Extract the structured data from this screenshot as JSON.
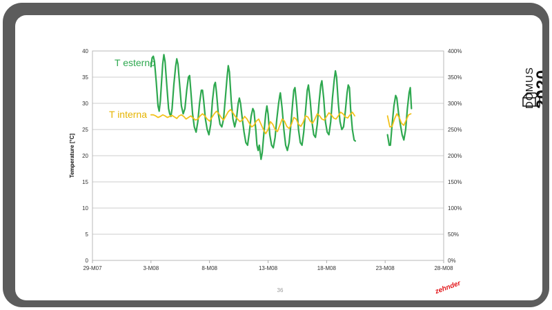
{
  "slide": {
    "page_number": "36",
    "brand": "zehnder",
    "logo": {
      "line1": "DOMUS",
      "line2": "2020",
      "icon": "house-outline-icon"
    }
  },
  "chart_data": {
    "type": "line",
    "title": "",
    "xlabel": "",
    "ylabel": "Temperature [°C]",
    "x_ticks": [
      "29-M07",
      "3-M08",
      "8-M08",
      "13-M08",
      "18-M08",
      "23-M08",
      "28-M08"
    ],
    "x_tick_values": [
      0,
      5,
      10,
      15,
      20,
      25,
      30
    ],
    "ylim": [
      0,
      40
    ],
    "y_ticks": [
      "0",
      "5",
      "10",
      "15",
      "20",
      "25",
      "30",
      "35",
      "40"
    ],
    "y2lim": [
      0,
      400
    ],
    "y2_ticks": [
      "0%",
      "50%",
      "100%",
      "150%",
      "200%",
      "250%",
      "300%",
      "350%",
      "400%"
    ],
    "grid": true,
    "series": [
      {
        "name": "T esterno",
        "color": "#2ea84f",
        "segments": [
          [
            [
              5.0,
              37.0
            ],
            [
              5.1,
              38.7
            ],
            [
              5.2,
              39.0
            ],
            [
              5.3,
              38.0
            ],
            [
              5.45,
              34.0
            ],
            [
              5.6,
              29.5
            ],
            [
              5.7,
              28.5
            ],
            [
              5.8,
              30.5
            ],
            [
              5.9,
              34.0
            ],
            [
              6.0,
              37.5
            ],
            [
              6.1,
              39.3
            ],
            [
              6.2,
              38.0
            ],
            [
              6.35,
              33.5
            ],
            [
              6.5,
              29.0
            ],
            [
              6.6,
              28.0
            ],
            [
              6.7,
              27.5
            ],
            [
              6.8,
              29.0
            ],
            [
              6.95,
              33.5
            ],
            [
              7.1,
              37.0
            ],
            [
              7.2,
              38.5
            ],
            [
              7.3,
              37.5
            ],
            [
              7.45,
              33.5
            ],
            [
              7.6,
              29.5
            ],
            [
              7.75,
              28.0
            ],
            [
              7.9,
              29.0
            ],
            [
              8.05,
              32.5
            ],
            [
              8.2,
              35.0
            ],
            [
              8.3,
              35.3
            ],
            [
              8.4,
              32.5
            ],
            [
              8.55,
              28.0
            ],
            [
              8.7,
              25.5
            ],
            [
              8.85,
              24.5
            ],
            [
              9.0,
              26.5
            ],
            [
              9.15,
              30.0
            ],
            [
              9.3,
              32.5
            ],
            [
              9.4,
              32.5
            ],
            [
              9.5,
              30.5
            ],
            [
              9.65,
              27.0
            ],
            [
              9.8,
              25.0
            ],
            [
              9.95,
              24.0
            ],
            [
              10.1,
              26.0
            ],
            [
              10.25,
              30.5
            ],
            [
              10.4,
              33.5
            ],
            [
              10.5,
              34.0
            ],
            [
              10.6,
              32.0
            ],
            [
              10.75,
              28.0
            ],
            [
              10.9,
              26.0
            ],
            [
              11.05,
              25.5
            ],
            [
              11.2,
              27.0
            ],
            [
              11.35,
              31.0
            ],
            [
              11.5,
              35.0
            ],
            [
              11.6,
              37.2
            ],
            [
              11.7,
              36.0
            ],
            [
              11.85,
              30.5
            ],
            [
              12.0,
              27.0
            ],
            [
              12.15,
              25.5
            ],
            [
              12.3,
              27.0
            ],
            [
              12.45,
              30.0
            ],
            [
              12.55,
              31.0
            ],
            [
              12.65,
              30.0
            ],
            [
              12.8,
              27.0
            ],
            [
              12.95,
              24.5
            ],
            [
              13.1,
              22.5
            ],
            [
              13.25,
              22.0
            ],
            [
              13.4,
              24.5
            ],
            [
              13.55,
              27.5
            ],
            [
              13.7,
              29.0
            ],
            [
              13.8,
              28.5
            ],
            [
              13.95,
              25.0
            ],
            [
              14.05,
              22.0
            ],
            [
              14.15,
              21.0
            ],
            [
              14.25,
              22.0
            ],
            [
              14.4,
              19.3
            ],
            [
              14.5,
              20.5
            ],
            [
              14.65,
              24.5
            ],
            [
              14.8,
              28.0
            ],
            [
              14.9,
              29.5
            ],
            [
              15.0,
              28.0
            ],
            [
              15.15,
              24.0
            ],
            [
              15.3,
              22.0
            ],
            [
              15.45,
              21.5
            ],
            [
              15.6,
              23.5
            ],
            [
              15.75,
              27.0
            ],
            [
              15.9,
              30.0
            ],
            [
              16.0,
              31.5
            ],
            [
              16.05,
              32.0
            ],
            [
              16.2,
              29.0
            ],
            [
              16.35,
              25.0
            ],
            [
              16.5,
              22.0
            ],
            [
              16.65,
              21.0
            ],
            [
              16.8,
              22.5
            ],
            [
              16.95,
              26.0
            ],
            [
              17.1,
              30.0
            ],
            [
              17.2,
              32.5
            ],
            [
              17.3,
              33.0
            ],
            [
              17.45,
              29.5
            ],
            [
              17.6,
              25.0
            ],
            [
              17.75,
              22.5
            ],
            [
              17.9,
              22.0
            ],
            [
              18.05,
              24.5
            ],
            [
              18.2,
              28.5
            ],
            [
              18.35,
              32.5
            ],
            [
              18.45,
              33.5
            ],
            [
              18.6,
              30.5
            ],
            [
              18.75,
              26.5
            ],
            [
              18.9,
              24.0
            ],
            [
              19.05,
              23.5
            ],
            [
              19.2,
              26.0
            ],
            [
              19.35,
              30.0
            ],
            [
              19.5,
              33.5
            ],
            [
              19.6,
              34.3
            ],
            [
              19.75,
              31.0
            ],
            [
              19.9,
              26.5
            ],
            [
              20.05,
              24.5
            ],
            [
              20.2,
              24.0
            ],
            [
              20.35,
              26.5
            ],
            [
              20.5,
              31.0
            ],
            [
              20.65,
              34.5
            ],
            [
              20.75,
              36.2
            ],
            [
              20.85,
              35.0
            ],
            [
              21.0,
              30.0
            ],
            [
              21.15,
              26.5
            ],
            [
              21.3,
              25.0
            ],
            [
              21.45,
              25.5
            ],
            [
              21.6,
              28.5
            ],
            [
              21.75,
              32.0
            ],
            [
              21.85,
              33.5
            ],
            [
              21.95,
              33.0
            ],
            [
              22.05,
              29.0
            ],
            [
              22.2,
              25.0
            ],
            [
              22.35,
              23.0
            ],
            [
              22.45,
              22.8
            ]
          ],
          [
            [
              25.2,
              24.0
            ],
            [
              25.35,
              22.0
            ],
            [
              25.45,
              22.0
            ],
            [
              25.6,
              26.0
            ],
            [
              25.75,
              29.5
            ],
            [
              25.9,
              31.5
            ],
            [
              26.0,
              31.0
            ],
            [
              26.15,
              28.0
            ],
            [
              26.3,
              26.0
            ],
            [
              26.45,
              24.0
            ],
            [
              26.6,
              23.0
            ],
            [
              26.75,
              25.0
            ],
            [
              26.9,
              29.0
            ],
            [
              27.05,
              32.0
            ],
            [
              27.15,
              33.0
            ],
            [
              27.25,
              29.0
            ]
          ]
        ]
      },
      {
        "name": "T interna",
        "color": "#f2c21b",
        "segments": [
          [
            [
              5.0,
              27.8
            ],
            [
              5.2,
              27.8
            ],
            [
              5.4,
              27.6
            ],
            [
              5.6,
              27.3
            ],
            [
              5.8,
              27.5
            ],
            [
              6.0,
              27.8
            ],
            [
              6.2,
              27.6
            ],
            [
              6.4,
              27.3
            ],
            [
              6.6,
              27.5
            ],
            [
              6.8,
              27.7
            ],
            [
              7.0,
              27.4
            ],
            [
              7.2,
              27.1
            ],
            [
              7.4,
              27.6
            ],
            [
              7.6,
              27.8
            ],
            [
              7.8,
              27.5
            ],
            [
              8.0,
              27.0
            ],
            [
              8.2,
              27.3
            ],
            [
              8.4,
              27.6
            ],
            [
              8.6,
              27.2
            ],
            [
              8.8,
              26.8
            ],
            [
              9.0,
              27.0
            ],
            [
              9.2,
              27.6
            ],
            [
              9.4,
              28.0
            ],
            [
              9.6,
              27.6
            ],
            [
              9.8,
              27.0
            ],
            [
              10.0,
              26.6
            ],
            [
              10.2,
              27.3
            ],
            [
              10.4,
              28.0
            ],
            [
              10.6,
              28.5
            ],
            [
              10.8,
              28.0
            ],
            [
              11.0,
              27.3
            ],
            [
              11.2,
              26.8
            ],
            [
              11.4,
              27.6
            ],
            [
              11.6,
              28.4
            ],
            [
              11.8,
              28.8
            ],
            [
              12.0,
              28.2
            ],
            [
              12.2,
              27.5
            ],
            [
              12.4,
              27.0
            ],
            [
              12.6,
              26.5
            ],
            [
              12.8,
              26.8
            ],
            [
              13.0,
              27.5
            ],
            [
              13.2,
              27.0
            ],
            [
              13.4,
              26.2
            ],
            [
              13.6,
              25.5
            ],
            [
              13.8,
              25.8
            ],
            [
              14.0,
              26.6
            ],
            [
              14.2,
              27.0
            ],
            [
              14.4,
              26.0
            ],
            [
              14.6,
              25.0
            ],
            [
              14.8,
              24.2
            ],
            [
              15.0,
              25.0
            ],
            [
              15.2,
              26.5
            ],
            [
              15.4,
              26.0
            ],
            [
              15.6,
              25.0
            ],
            [
              15.8,
              24.6
            ],
            [
              16.0,
              25.8
            ],
            [
              16.2,
              27.0
            ],
            [
              16.4,
              26.6
            ],
            [
              16.6,
              25.6
            ],
            [
              16.8,
              25.2
            ],
            [
              17.0,
              26.0
            ],
            [
              17.2,
              27.3
            ],
            [
              17.4,
              27.0
            ],
            [
              17.6,
              26.0
            ],
            [
              17.8,
              25.6
            ],
            [
              18.0,
              26.4
            ],
            [
              18.2,
              27.6
            ],
            [
              18.4,
              27.4
            ],
            [
              18.6,
              26.6
            ],
            [
              18.8,
              26.2
            ],
            [
              19.0,
              27.0
            ],
            [
              19.2,
              28.0
            ],
            [
              19.4,
              27.6
            ],
            [
              19.6,
              27.0
            ],
            [
              19.8,
              26.8
            ],
            [
              20.0,
              27.5
            ],
            [
              20.2,
              28.2
            ],
            [
              20.4,
              27.8
            ],
            [
              20.6,
              27.2
            ],
            [
              20.8,
              27.0
            ],
            [
              21.0,
              27.6
            ],
            [
              21.2,
              28.3
            ],
            [
              21.4,
              28.0
            ],
            [
              21.6,
              27.4
            ],
            [
              21.8,
              27.2
            ],
            [
              22.0,
              27.8
            ],
            [
              22.2,
              28.3
            ],
            [
              22.4,
              27.6
            ]
          ],
          [
            [
              25.2,
              27.6
            ],
            [
              25.4,
              25.5
            ],
            [
              25.6,
              25.6
            ],
            [
              25.8,
              27.0
            ],
            [
              26.0,
              28.0
            ],
            [
              26.2,
              27.3
            ],
            [
              26.4,
              26.2
            ],
            [
              26.6,
              25.8
            ],
            [
              26.8,
              26.8
            ],
            [
              27.0,
              27.8
            ],
            [
              27.2,
              28.0
            ]
          ]
        ]
      }
    ]
  }
}
